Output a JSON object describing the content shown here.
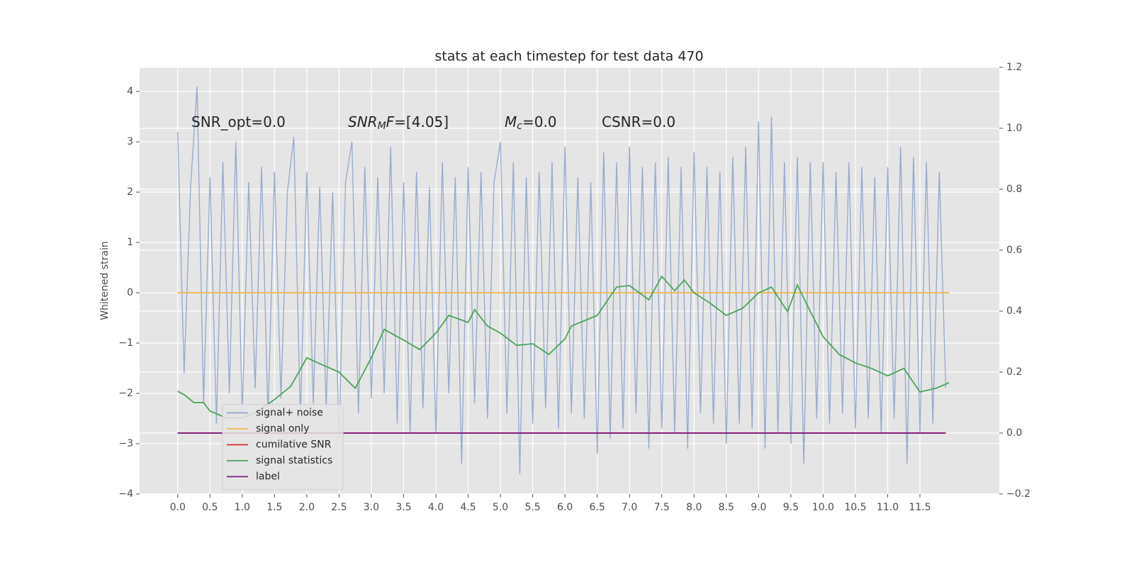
{
  "chart_data": {
    "type": "line",
    "title": "stats at each timestep for test data 470",
    "ylabel": "Whitened strain",
    "background": "#e5e5e5",
    "grid": true,
    "xlim": [
      -0.59,
      12.73
    ],
    "ylim": [
      -4,
      4.48
    ],
    "y2lim": [
      -0.2,
      1.2
    ],
    "xticks": [
      {
        "value": 0,
        "label": "0.0"
      },
      0.5,
      {
        "value": 1,
        "label": "1.0"
      },
      1.5,
      {
        "value": 2,
        "label": "2.0"
      },
      2.5,
      {
        "value": 3,
        "label": "3.0"
      },
      3.5,
      {
        "value": 4,
        "label": "4.0"
      },
      4.5,
      {
        "value": 5,
        "label": "5.0"
      },
      5.5,
      {
        "value": 6,
        "label": "6.0"
      },
      6.5,
      {
        "value": 7,
        "label": "7.0"
      },
      7.5,
      {
        "value": 8,
        "label": "8.0"
      },
      8.5,
      {
        "value": 9,
        "label": "9.0"
      },
      9.5,
      {
        "value": 10,
        "label": "10.0"
      },
      10.5,
      {
        "value": 11,
        "label": "11.0"
      },
      11.5
    ],
    "yticks": [
      {
        "value": -4,
        "label": "−4"
      },
      {
        "value": -3,
        "label": "−3"
      },
      {
        "value": -2,
        "label": "−2"
      },
      {
        "value": -1,
        "label": "−1"
      },
      0,
      1,
      2,
      3,
      4
    ],
    "y2ticks": [
      {
        "value": -0.2,
        "label": "−0.2"
      },
      {
        "value": 0,
        "label": "0.0"
      },
      0.2,
      0.4,
      0.6,
      0.8,
      {
        "value": 1,
        "label": "1.0"
      },
      1.2
    ],
    "annotations": [
      {
        "parts": [
          {
            "text": "SNR_opt=0.0",
            "style": "normal"
          }
        ]
      },
      {
        "parts": [
          {
            "text": "SNR",
            "style": "italic"
          },
          {
            "text": "M",
            "style": "sub"
          },
          {
            "text": "F",
            "style": "italic"
          },
          {
            "text": "=[4.05]",
            "style": "normal"
          }
        ]
      },
      {
        "parts": [
          {
            "text": "M",
            "style": "italic"
          },
          {
            "text": "c",
            "style": "sub"
          },
          {
            "text": "=0.0",
            "style": "normal"
          }
        ]
      },
      {
        "parts": [
          {
            "text": "CSNR=0.0",
            "style": "normal"
          }
        ]
      }
    ],
    "legend": "lower left",
    "series": [
      {
        "name": "signal+ noise",
        "color": "#8fa5cc",
        "axis": "y",
        "x": [
          0.0,
          0.1,
          0.2,
          0.3,
          0.4,
          0.5,
          0.6,
          0.7,
          0.8,
          0.9,
          1.0,
          1.1,
          1.2,
          1.3,
          1.4,
          1.5,
          1.6,
          1.7,
          1.8,
          1.9,
          2.0,
          2.1,
          2.2,
          2.3,
          2.4,
          2.5,
          2.6,
          2.7,
          2.8,
          2.9,
          3.0,
          3.1,
          3.2,
          3.3,
          3.4,
          3.5,
          3.6,
          3.7,
          3.8,
          3.9,
          4.0,
          4.1,
          4.2,
          4.3,
          4.4,
          4.5,
          4.6,
          4.7,
          4.8,
          4.9,
          5.0,
          5.1,
          5.2,
          5.3,
          5.4,
          5.5,
          5.6,
          5.7,
          5.8,
          5.9,
          6.0,
          6.1,
          6.2,
          6.3,
          6.4,
          6.5,
          6.6,
          6.7,
          6.8,
          6.9,
          7.0,
          7.1,
          7.2,
          7.3,
          7.4,
          7.5,
          7.6,
          7.7,
          7.8,
          7.9,
          8.0,
          8.1,
          8.2,
          8.3,
          8.4,
          8.5,
          8.6,
          8.7,
          8.8,
          8.9,
          9.0,
          9.1,
          9.2,
          9.3,
          9.4,
          9.5,
          9.6,
          9.7,
          9.8,
          9.9,
          10.0,
          10.1,
          10.2,
          10.3,
          10.4,
          10.5,
          10.6,
          10.7,
          10.8,
          10.9,
          11.0,
          11.1,
          11.2,
          11.3,
          11.4,
          11.5,
          11.6,
          11.7,
          11.8,
          11.9
        ],
        "values": [
          3.2,
          -1.6,
          2.1,
          4.1,
          -2.2,
          2.3,
          -2.6,
          2.6,
          -2.0,
          3.0,
          -2.4,
          2.2,
          -1.9,
          2.5,
          -2.5,
          2.4,
          -2.1,
          2.0,
          3.1,
          -2.5,
          2.4,
          -2.2,
          2.1,
          -2.3,
          2.0,
          -2.9,
          2.2,
          3.0,
          -2.4,
          2.5,
          -2.1,
          2.3,
          -2.0,
          2.9,
          -2.6,
          2.2,
          -2.8,
          2.4,
          -2.3,
          2.1,
          -2.8,
          2.6,
          -2.0,
          2.3,
          -3.4,
          2.5,
          -2.2,
          2.4,
          -2.5,
          2.2,
          3.0,
          -2.4,
          2.6,
          -3.6,
          2.3,
          -2.6,
          2.4,
          -2.3,
          2.6,
          -2.7,
          2.9,
          -2.4,
          2.3,
          -2.5,
          2.2,
          -3.2,
          2.8,
          -2.9,
          2.6,
          -2.7,
          2.9,
          -2.4,
          2.5,
          -3.1,
          2.6,
          -2.7,
          2.7,
          -2.8,
          2.5,
          -3.1,
          2.8,
          -2.4,
          2.5,
          -2.6,
          2.4,
          -3.0,
          2.7,
          -2.6,
          2.9,
          -2.7,
          3.4,
          -3.1,
          3.5,
          -2.8,
          2.6,
          -3.0,
          2.7,
          -3.4,
          2.6,
          -2.5,
          2.6,
          -2.6,
          2.4,
          -2.4,
          2.6,
          -2.7,
          2.5,
          -2.5,
          2.3,
          -2.8,
          2.5,
          -2.5,
          2.9,
          -3.4,
          2.7,
          -2.8,
          2.6,
          -2.6,
          2.4,
          -1.9
        ]
      },
      {
        "name": "signal only",
        "color": "#f0b64c",
        "axis": "y",
        "x": [
          0,
          11.95
        ],
        "values": [
          0,
          0
        ]
      },
      {
        "name": "cumilative SNR",
        "color": "#d62728",
        "axis": "y2",
        "x": [
          0,
          11.9
        ],
        "values": [
          0,
          0
        ]
      },
      {
        "name": "signal statistics",
        "color": "#4aa458",
        "axis": "y2",
        "x": [
          0,
          0.1,
          0.25,
          0.4,
          0.5,
          0.75,
          1.0,
          1.25,
          1.5,
          1.75,
          2.0,
          2.25,
          2.5,
          2.75,
          3.0,
          3.2,
          3.5,
          3.75,
          4.0,
          4.2,
          4.5,
          4.6,
          4.8,
          5.0,
          5.25,
          5.5,
          5.75,
          6.0,
          6.1,
          6.5,
          6.8,
          7.0,
          7.3,
          7.5,
          7.7,
          7.85,
          8.0,
          8.25,
          8.5,
          8.75,
          9.0,
          9.2,
          9.45,
          9.6,
          9.75,
          10.0,
          10.25,
          10.5,
          10.75,
          11.0,
          11.25,
          11.5,
          11.75,
          11.95
        ],
        "values": [
          0.137,
          0.126,
          0.1,
          0.1,
          0.072,
          0.05,
          0.05,
          0.072,
          0.11,
          0.153,
          0.247,
          0.223,
          0.2,
          0.147,
          0.247,
          0.34,
          0.305,
          0.274,
          0.328,
          0.386,
          0.363,
          0.405,
          0.351,
          0.328,
          0.288,
          0.293,
          0.258,
          0.309,
          0.351,
          0.386,
          0.479,
          0.484,
          0.437,
          0.514,
          0.467,
          0.502,
          0.46,
          0.426,
          0.386,
          0.409,
          0.46,
          0.479,
          0.398,
          0.486,
          0.421,
          0.316,
          0.258,
          0.23,
          0.212,
          0.188,
          0.212,
          0.135,
          0.147,
          0.165
        ]
      },
      {
        "name": "label",
        "color": "#7b1a7f",
        "axis": "y2",
        "x": [
          0,
          11.9
        ],
        "values": [
          0,
          0
        ]
      }
    ]
  }
}
